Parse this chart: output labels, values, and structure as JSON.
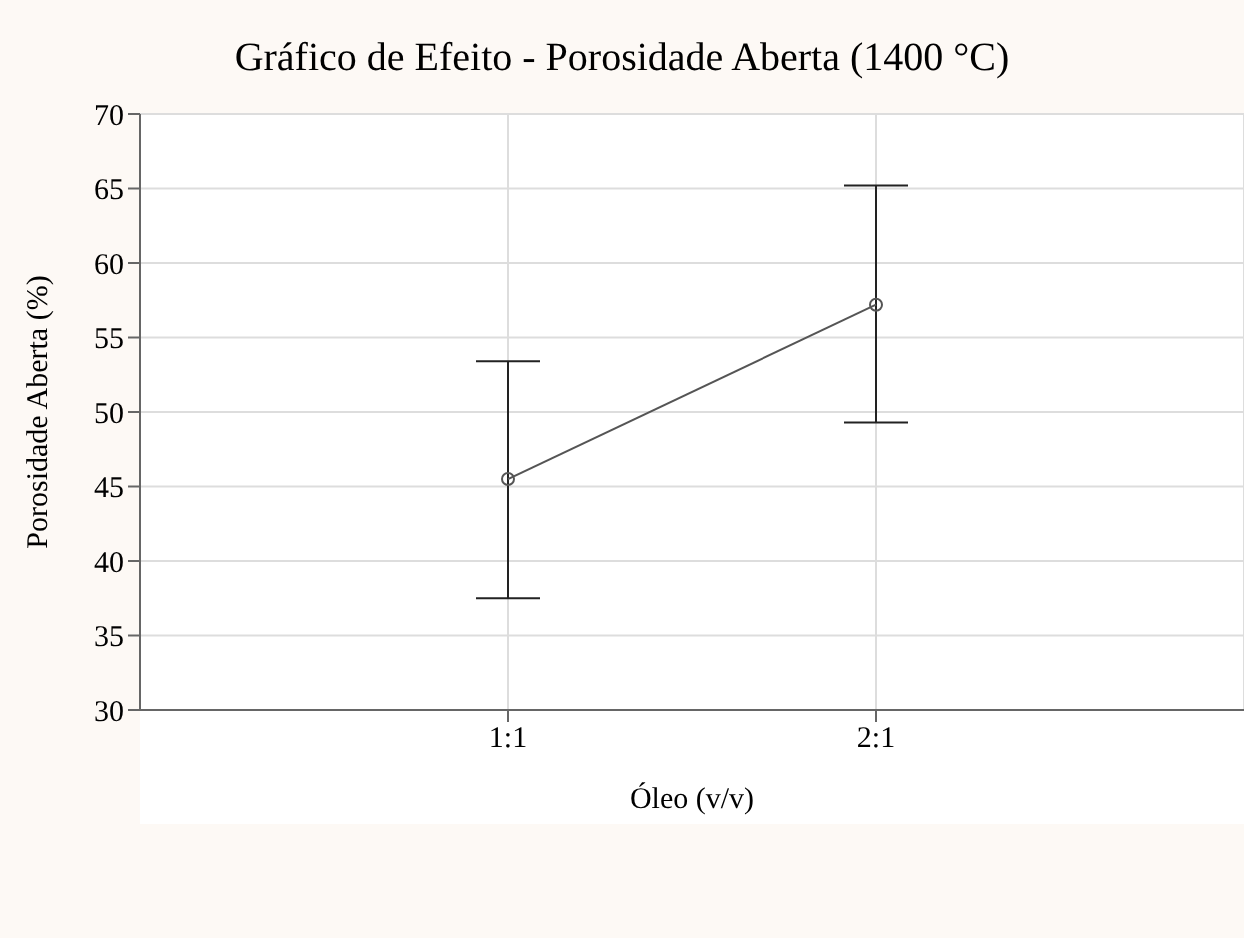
{
  "chart_data": {
    "type": "line",
    "title": "Gráfico de Efeito - Porosidade Aberta (1400 °C)",
    "xlabel": "Óleo (v/v)",
    "ylabel": "Porosidade Aberta (%)",
    "categories": [
      "1:1",
      "2:1"
    ],
    "series": [
      {
        "color": "#555555",
        "values": [
          45.5,
          57.2
        ],
        "errors": [
          [
            37.5,
            53.4
          ],
          [
            49.3,
            65.2
          ]
        ]
      }
    ],
    "ylim": [
      30,
      70
    ],
    "yticks": [
      30,
      35,
      40,
      45,
      50,
      55,
      60,
      65,
      70
    ],
    "grid": true,
    "marker": "circle",
    "line_style": "solid"
  }
}
